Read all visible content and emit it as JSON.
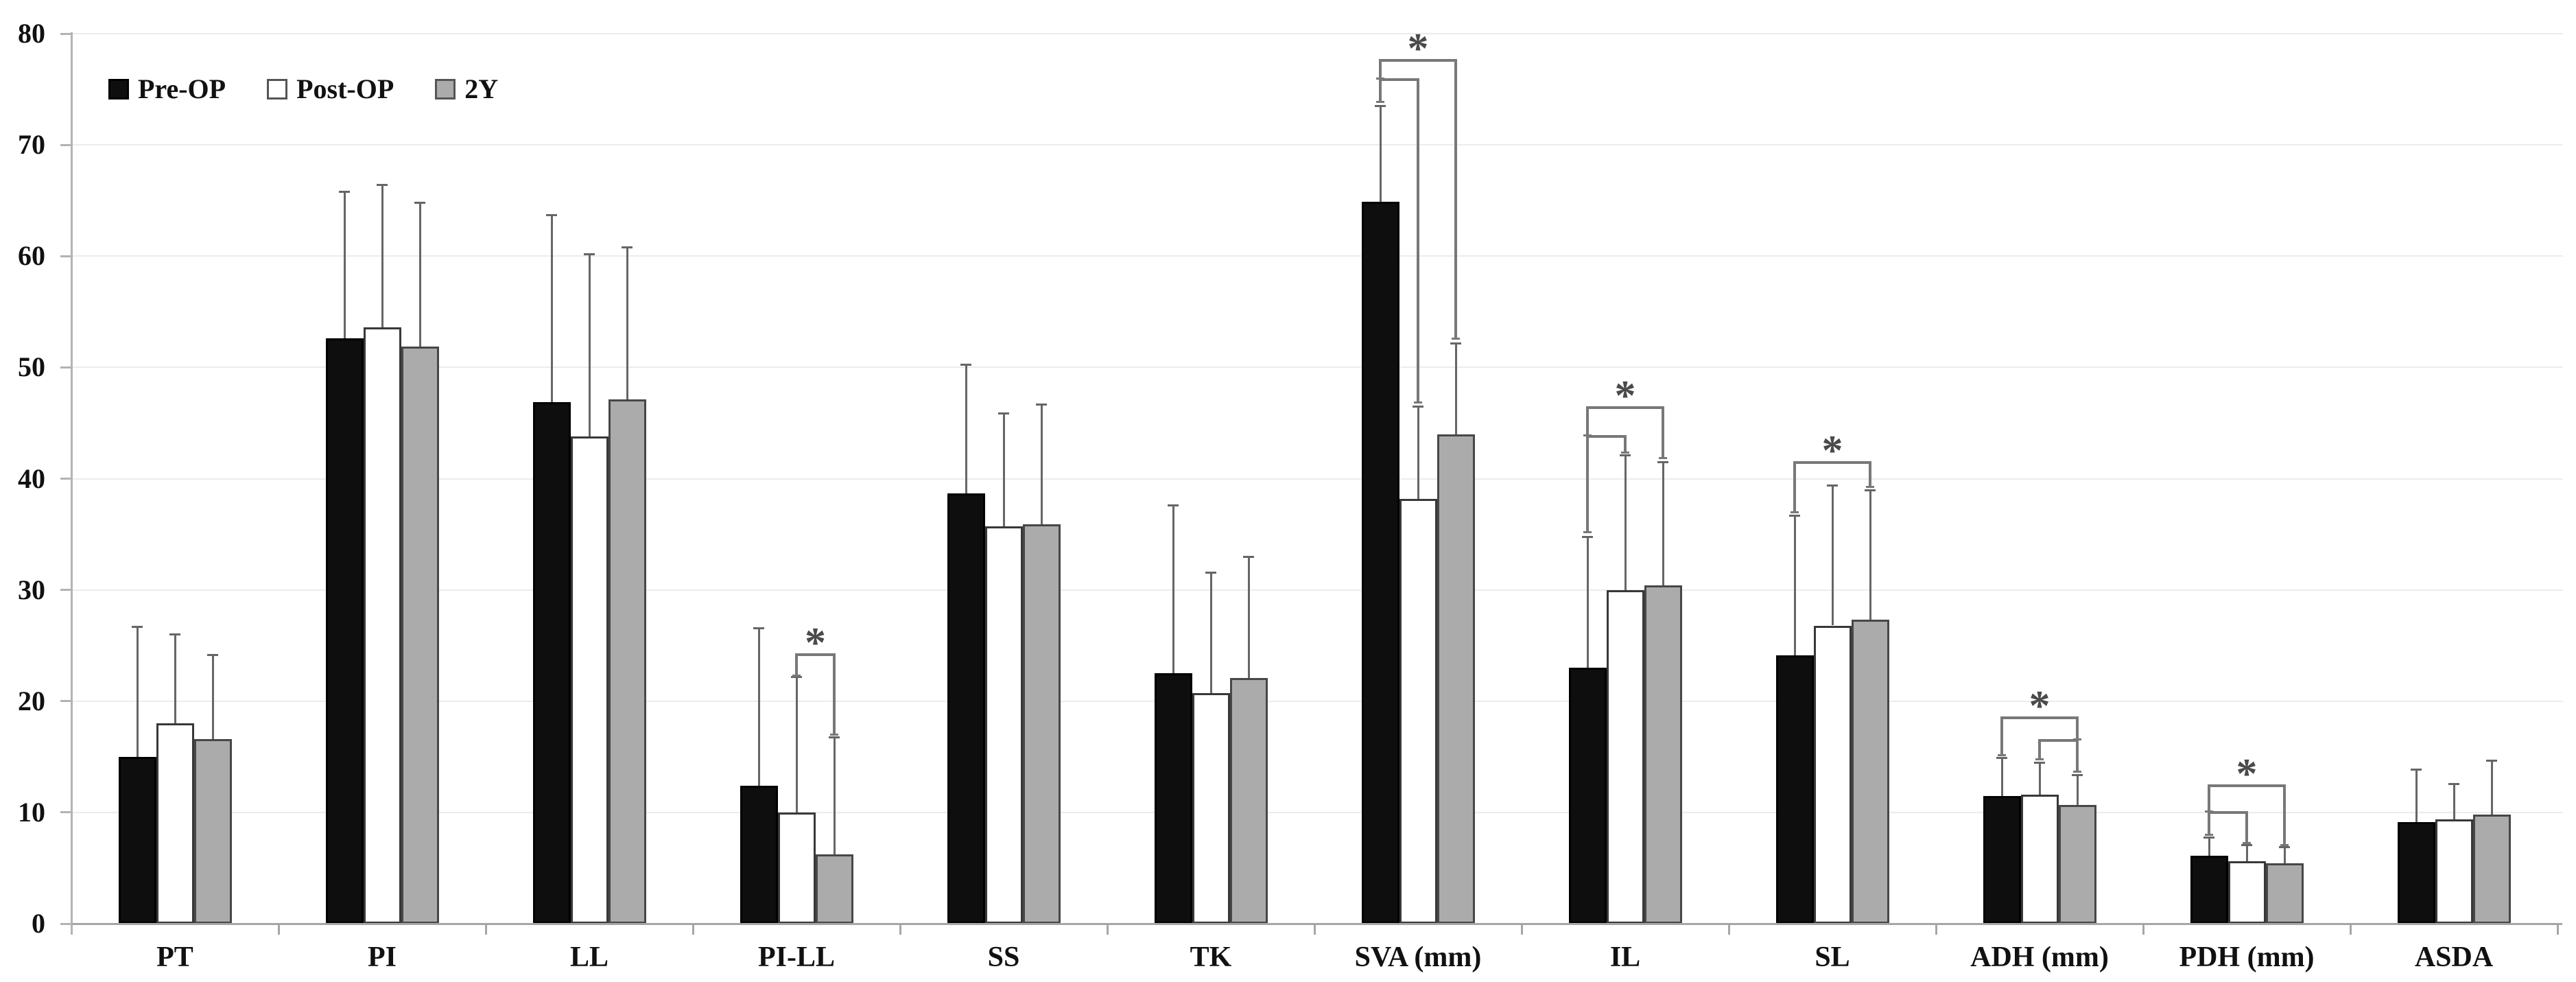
{
  "chart_data": {
    "type": "bar",
    "title": "",
    "xlabel": "",
    "ylabel": "",
    "ylim": [
      0,
      80
    ],
    "ytick_step": 10,
    "ytick_labels": [
      "0",
      "10",
      "20",
      "30",
      "40",
      "50",
      "60",
      "70",
      "80"
    ],
    "grid": true,
    "legend_position": "top-left",
    "error_bars": "upper-only",
    "significance_marker": "*",
    "categories": [
      "PT",
      "PI",
      "LL",
      "PI-LL",
      "SS",
      "TK",
      "SVA (mm)",
      "IL",
      "SL",
      "ADH (mm)",
      "PDH (mm)",
      "ASDA"
    ],
    "series": [
      {
        "name": "Pre-OP",
        "fill": "#0e0e0e",
        "border": "#000000",
        "values": [
          15.0,
          52.6,
          46.9,
          12.4,
          38.7,
          22.5,
          64.9,
          23.0,
          24.1,
          11.5,
          6.1,
          9.1
        ],
        "errors": [
          11.7,
          13.2,
          16.8,
          14.2,
          11.6,
          15.1,
          8.6,
          11.8,
          12.6,
          3.4,
          1.7,
          4.8
        ]
      },
      {
        "name": "Post-OP",
        "fill": "#ffffff",
        "border": "#383838",
        "values": [
          18.0,
          53.6,
          43.8,
          10.0,
          35.7,
          20.7,
          38.2,
          30.0,
          26.8,
          11.6,
          5.6,
          9.4
        ],
        "errors": [
          8.0,
          12.8,
          16.4,
          12.2,
          10.2,
          10.9,
          8.3,
          12.1,
          12.6,
          2.9,
          1.5,
          3.2
        ]
      },
      {
        "name": "2Y",
        "fill": "#ababab",
        "border": "#474747",
        "values": [
          16.6,
          51.9,
          47.1,
          6.2,
          35.9,
          22.1,
          44.0,
          30.4,
          27.3,
          10.7,
          5.4,
          9.8
        ],
        "errors": [
          7.6,
          12.9,
          13.7,
          10.6,
          10.8,
          10.9,
          8.2,
          11.1,
          11.7,
          2.7,
          1.5,
          4.9
        ]
      }
    ],
    "significance": [
      {
        "category": "PI-LL",
        "a": "Post-OP",
        "b": "2Y",
        "level": 24.3,
        "a_end": 22.3,
        "b_end": 17.0,
        "star": true
      },
      {
        "category": "SVA (mm)",
        "a": "Pre-OP",
        "b": "Post-OP",
        "level": 76.0,
        "a_end": 73.9,
        "b_end": 46.9,
        "star": false
      },
      {
        "category": "SVA (mm)",
        "a": "Pre-OP",
        "b": "2Y",
        "level": 77.7,
        "a_end": 76.0,
        "b_end": 52.6,
        "star": true
      },
      {
        "category": "IL",
        "a": "Pre-OP",
        "b": "Post-OP",
        "level": 43.9,
        "a_end": 35.2,
        "b_end": 42.4,
        "star": false
      },
      {
        "category": "IL",
        "a": "Pre-OP",
        "b": "2Y",
        "level": 46.5,
        "a_end": 43.9,
        "b_end": 41.9,
        "star": true
      },
      {
        "category": "SL",
        "a": "Pre-OP",
        "b": "2Y",
        "level": 41.6,
        "a_end": 37.0,
        "b_end": 39.3,
        "star": true
      },
      {
        "category": "ADH (mm)",
        "a": "Post-OP",
        "b": "2Y",
        "level": 16.6,
        "a_end": 14.8,
        "b_end": 13.7,
        "star": false
      },
      {
        "category": "ADH (mm)",
        "a": "Pre-OP",
        "b": "2Y",
        "level": 18.6,
        "a_end": 15.2,
        "b_end": 16.6,
        "star": true
      },
      {
        "category": "PDH (mm)",
        "a": "Pre-OP",
        "b": "Post-OP",
        "level": 10.1,
        "a_end": 8.0,
        "b_end": 7.3,
        "star": false
      },
      {
        "category": "PDH (mm)",
        "a": "Pre-OP",
        "b": "2Y",
        "level": 12.5,
        "a_end": 10.1,
        "b_end": 7.1,
        "star": true
      }
    ]
  },
  "legend": {
    "items": [
      {
        "label": "Pre-OP"
      },
      {
        "label": "Post-OP"
      },
      {
        "label": "2Y"
      }
    ]
  }
}
